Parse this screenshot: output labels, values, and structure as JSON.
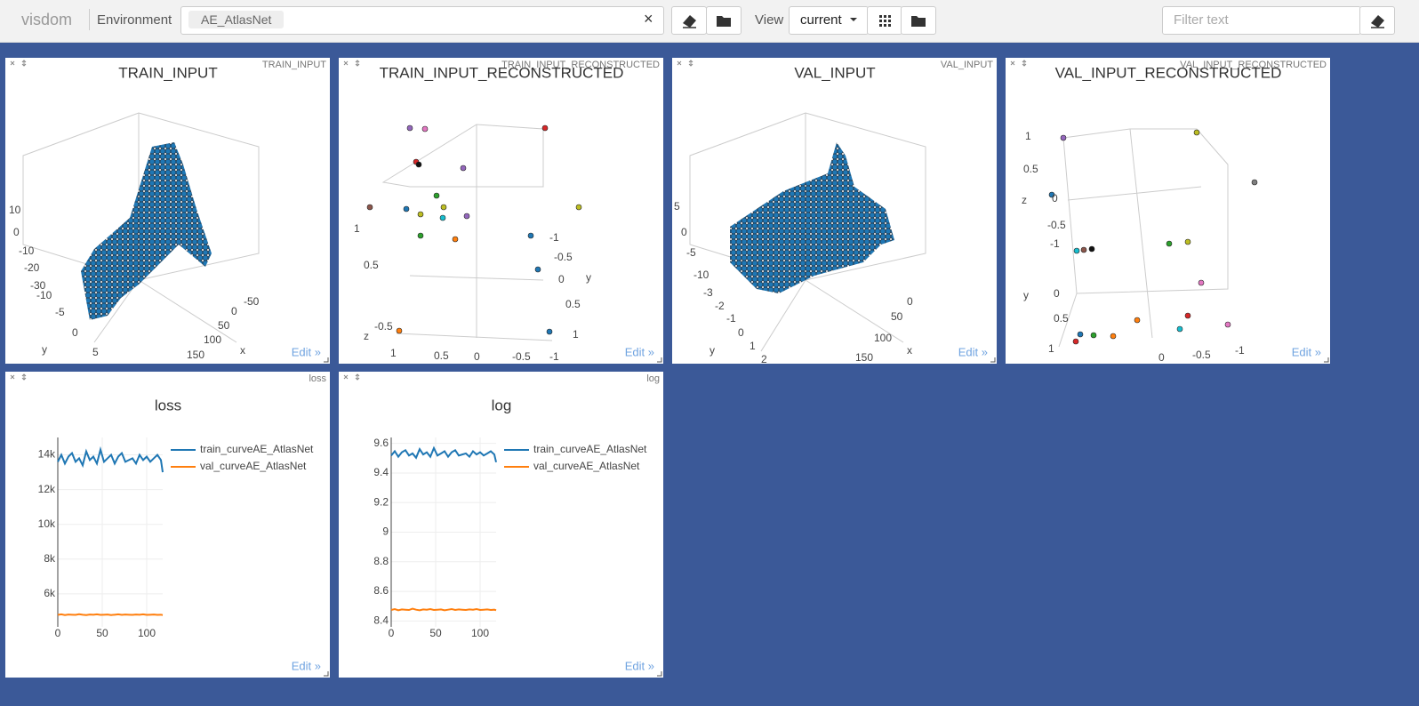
{
  "toolbar": {
    "brand": "visdom",
    "env_label": "Environment",
    "env_chip": "AE_AtlasNet",
    "clear": "×",
    "view_label": "View",
    "view_value": "current",
    "filter_placeholder": "Filter text"
  },
  "edit_label": "Edit »",
  "panes": [
    {
      "title": "TRAIN_INPUT",
      "corner": "TRAIN_INPUT",
      "axis_texts": [
        "10",
        "0",
        "-10",
        "-20",
        "-30",
        "-10",
        "-5",
        "0",
        "5",
        "y",
        "-50",
        "0",
        "50",
        "100",
        "150",
        "x"
      ]
    },
    {
      "title": "TRAIN_INPUT_RECONSTRUCTED",
      "corner": "TRAIN_INPUT_RECONSTRUCTED",
      "axis_texts": [
        "1",
        "0.5",
        "-0.5",
        "z",
        "1",
        "0.5",
        "0",
        "-0.5",
        "-1",
        "-1",
        "-0.5",
        "0",
        "0.5",
        "1",
        "y"
      ]
    },
    {
      "title": "VAL_INPUT",
      "corner": "VAL_INPUT",
      "axis_texts": [
        "5",
        "0",
        "-5",
        "-10",
        "-3",
        "-2",
        "-1",
        "0",
        "1",
        "2",
        "y",
        "0",
        "50",
        "100",
        "150",
        "x"
      ]
    },
    {
      "title": "VAL_INPUT_RECONSTRUCTED",
      "corner": "VAL_INPUT_RECONSTRUCTED",
      "axis_texts": [
        "1",
        "0.5",
        "z",
        "0",
        "-0.5",
        "-1",
        "y",
        "0",
        "0.5",
        "1",
        "0",
        "-0.5",
        "-1"
      ]
    }
  ],
  "chart_data": [
    {
      "type": "line",
      "title": "loss",
      "corner": "loss",
      "x": [
        0,
        4,
        8,
        12,
        16,
        20,
        24,
        28,
        32,
        36,
        40,
        44,
        48,
        52,
        56,
        60,
        64,
        68,
        72,
        76,
        80,
        84,
        88,
        92,
        96,
        100,
        104,
        108,
        112,
        116,
        118
      ],
      "series": [
        {
          "name": "train_curveAE_AtlasNet",
          "color": "#1f77b4",
          "values": [
            13600,
            14000,
            13500,
            13900,
            14100,
            13600,
            13800,
            13400,
            14200,
            13700,
            13900,
            13500,
            14300,
            13600,
            13800,
            14000,
            13500,
            13900,
            14100,
            13600,
            13700,
            13800,
            13500,
            14000,
            13700,
            13900,
            13600,
            13800,
            14000,
            13700,
            13000
          ]
        },
        {
          "name": "val_curveAE_AtlasNet",
          "color": "#ff7f0e",
          "values": [
            4790,
            4820,
            4780,
            4810,
            4800,
            4790,
            4830,
            4800,
            4780,
            4810,
            4800,
            4820,
            4790,
            4800,
            4810,
            4780,
            4800,
            4820,
            4790,
            4810,
            4800,
            4790,
            4810,
            4800,
            4820,
            4790,
            4800,
            4810,
            4790,
            4800,
            4780
          ]
        }
      ],
      "xlim": [
        0,
        118
      ],
      "ylim": [
        4100,
        15000
      ],
      "xticks": [
        0,
        50,
        100
      ],
      "yticks": [
        {
          "value": 6000,
          "label": "6k"
        },
        {
          "value": 8000,
          "label": "8k"
        },
        {
          "value": 10000,
          "label": "10k"
        },
        {
          "value": 12000,
          "label": "12k"
        },
        {
          "value": 14000,
          "label": "14k"
        }
      ],
      "grid": true
    },
    {
      "type": "line",
      "title": "log",
      "corner": "log",
      "x": [
        0,
        4,
        8,
        12,
        16,
        20,
        24,
        28,
        32,
        36,
        40,
        44,
        48,
        52,
        56,
        60,
        64,
        68,
        72,
        76,
        80,
        84,
        88,
        92,
        96,
        100,
        104,
        108,
        112,
        116,
        118
      ],
      "series": [
        {
          "name": "train_curveAE_AtlasNet",
          "color": "#1f77b4",
          "values": [
            9.518,
            9.547,
            9.51,
            9.54,
            9.554,
            9.518,
            9.532,
            9.503,
            9.561,
            9.525,
            9.54,
            9.51,
            9.568,
            9.518,
            9.532,
            9.547,
            9.51,
            9.54,
            9.554,
            9.518,
            9.525,
            9.532,
            9.51,
            9.547,
            9.525,
            9.54,
            9.518,
            9.532,
            9.547,
            9.525,
            9.473
          ]
        },
        {
          "name": "val_curveAE_AtlasNet",
          "color": "#ff7f0e",
          "values": [
            8.474,
            8.48,
            8.472,
            8.478,
            8.476,
            8.474,
            8.483,
            8.476,
            8.472,
            8.478,
            8.476,
            8.48,
            8.474,
            8.476,
            8.478,
            8.472,
            8.476,
            8.48,
            8.474,
            8.478,
            8.476,
            8.474,
            8.478,
            8.476,
            8.48,
            8.474,
            8.476,
            8.478,
            8.474,
            8.476,
            8.472
          ]
        }
      ],
      "xlim": [
        0,
        118
      ],
      "ylim": [
        8.36,
        9.64
      ],
      "xticks": [
        0,
        50,
        100
      ],
      "yticks": [
        8.4,
        8.6,
        8.8,
        9,
        9.2,
        9.4,
        9.6
      ],
      "grid": true
    }
  ]
}
